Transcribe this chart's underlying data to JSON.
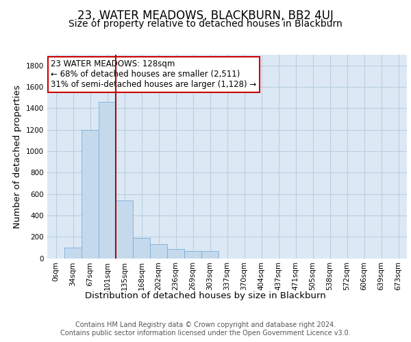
{
  "title": "23, WATER MEADOWS, BLACKBURN, BB2 4UJ",
  "subtitle": "Size of property relative to detached houses in Blackburn",
  "xlabel": "Distribution of detached houses by size in Blackburn",
  "ylabel": "Number of detached properties",
  "bar_values": [
    0,
    100,
    1200,
    1460,
    540,
    190,
    130,
    85,
    65,
    65,
    0,
    0,
    0,
    0,
    0,
    0,
    0,
    0,
    0,
    0,
    0
  ],
  "bin_labels": [
    "0sqm",
    "34sqm",
    "67sqm",
    "101sqm",
    "135sqm",
    "168sqm",
    "202sqm",
    "236sqm",
    "269sqm",
    "303sqm",
    "337sqm",
    "370sqm",
    "404sqm",
    "437sqm",
    "471sqm",
    "505sqm",
    "538sqm",
    "572sqm",
    "606sqm",
    "639sqm",
    "673sqm"
  ],
  "bar_color": "#c5d9ed",
  "bar_edge_color": "#7aaed6",
  "background_color": "#dce9f5",
  "grid_color": "#b8cfe0",
  "vline_color": "#9b1010",
  "vline_x_index": 3,
  "annotation_text": "23 WATER MEADOWS: 128sqm\n← 68% of detached houses are smaller (2,511)\n31% of semi-detached houses are larger (1,128) →",
  "annotation_box_color": "#cc0000",
  "ylim": [
    0,
    1900
  ],
  "yticks": [
    0,
    200,
    400,
    600,
    800,
    1000,
    1200,
    1400,
    1600,
    1800
  ],
  "footer_text": "Contains HM Land Registry data © Crown copyright and database right 2024.\nContains public sector information licensed under the Open Government Licence v3.0.",
  "title_fontsize": 12,
  "subtitle_fontsize": 10,
  "axis_label_fontsize": 9.5,
  "tick_fontsize": 7.5,
  "annotation_fontsize": 8.5,
  "footer_fontsize": 7
}
